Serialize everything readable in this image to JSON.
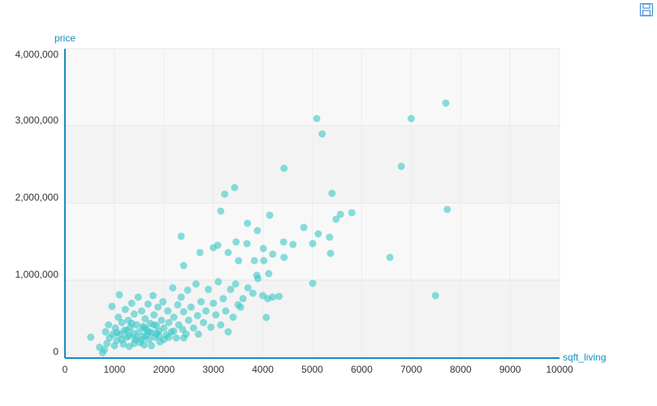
{
  "chart_data": {
    "type": "scatter",
    "x_label": "sqft_living",
    "y_label": "price",
    "color": "#3cc8c8",
    "grid": true,
    "xlim": [
      0,
      10000
    ],
    "xticks": [
      0,
      1000,
      2000,
      3000,
      4000,
      5000,
      6000,
      7000,
      8000,
      9000,
      10000
    ],
    "ylim": [
      0,
      4000000
    ],
    "yticks": [
      0,
      {
        "value": 1000000,
        "label": "1,000,000"
      },
      {
        "value": 2000000,
        "label": "2,000,000"
      },
      {
        "value": 3000000,
        "label": "3,000,000"
      },
      {
        "value": 4000000,
        "label": "4,000,000"
      }
    ],
    "x": [
      5090,
      5200,
      7700,
      7000,
      6800,
      7730,
      6570,
      7490,
      4430,
      3430,
      3230,
      3150,
      5400,
      5800,
      5570,
      5480,
      4830,
      4140,
      3690,
      2350,
      5120,
      5350,
      5010,
      4420,
      4610,
      3890,
      4010,
      3000,
      3090,
      3460,
      3680,
      4430,
      4200,
      5370,
      5010,
      4070,
      4330,
      4120,
      3880,
      2730,
      2400,
      3300,
      3510,
      3830,
      4020,
      520,
      700,
      760,
      800,
      820,
      850,
      880,
      900,
      950,
      970,
      1000,
      1020,
      1050,
      1080,
      1100,
      1120,
      1150,
      1180,
      1200,
      1220,
      1250,
      1280,
      1300,
      1320,
      1350,
      1380,
      1400,
      1420,
      1450,
      1480,
      1500,
      1520,
      1550,
      1580,
      1600,
      1620,
      1650,
      1680,
      1700,
      1720,
      1750,
      1780,
      1800,
      1820,
      1850,
      1880,
      1900,
      1920,
      1950,
      1980,
      2000,
      2050,
      2080,
      2100,
      2150,
      2180,
      2200,
      2250,
      2280,
      2300,
      2350,
      2380,
      2400,
      2450,
      2480,
      2500,
      2550,
      2600,
      2650,
      2680,
      2700,
      2750,
      2800,
      2850,
      2900,
      2950,
      3000,
      3050,
      3100,
      3150,
      3200,
      3250,
      3300,
      3350,
      3400,
      3450,
      3500,
      3550,
      3600,
      3700,
      3800,
      3900,
      4000,
      4100,
      4200,
      1300,
      1450,
      1600,
      1750,
      1350,
      1550,
      1700,
      1250,
      1650,
      1900,
      2100,
      1400,
      1150,
      1050,
      1850,
      2000,
      2200,
      2400,
      1600,
      1800
    ],
    "values": [
      3095000,
      2895000,
      3295000,
      3095000,
      2475000,
      1916000,
      1295000,
      800000,
      2450000,
      2200000,
      2115000,
      1895000,
      2126000,
      1874000,
      1853000,
      1790000,
      1684000,
      1842000,
      1737000,
      1568000,
      1600000,
      1557000,
      1474000,
      1495000,
      1463000,
      1642000,
      1410000,
      1421000,
      1453000,
      1495000,
      1474000,
      1295000,
      1337000,
      1347000,
      958000,
      516000,
      790000,
      1084000,
      1063000,
      1358000,
      1189000,
      1358000,
      1253000,
      1253000,
      1253000,
      260000,
      130000,
      60000,
      100000,
      330000,
      180000,
      420000,
      250000,
      660000,
      300000,
      150000,
      380000,
      220000,
      520000,
      810000,
      300000,
      450000,
      170000,
      350000,
      620000,
      260000,
      480000,
      140000,
      390000,
      700000,
      310000,
      560000,
      230000,
      420000,
      780000,
      330000,
      190000,
      600000,
      400000,
      270000,
      500000,
      360000,
      690000,
      230000,
      440000,
      320000,
      800000,
      550000,
      260000,
      410000,
      650000,
      340000,
      200000,
      480000,
      720000,
      380000,
      290000,
      600000,
      450000,
      330000,
      900000,
      520000,
      250000,
      680000,
      420000,
      780000,
      360000,
      590000,
      300000,
      870000,
      480000,
      650000,
      380000,
      950000,
      540000,
      300000,
      720000,
      450000,
      600000,
      880000,
      390000,
      700000,
      550000,
      980000,
      420000,
      760000,
      600000,
      330000,
      880000,
      520000,
      950000,
      680000,
      650000,
      760000,
      900000,
      830000,
      1020000,
      800000,
      760000,
      780000,
      280000,
      260000,
      380000,
      150000,
      440000,
      230000,
      330000,
      350000,
      290000,
      280000,
      260000,
      180000,
      230000,
      320000,
      310000,
      230000,
      340000,
      250000,
      160000,
      420000
    ]
  }
}
